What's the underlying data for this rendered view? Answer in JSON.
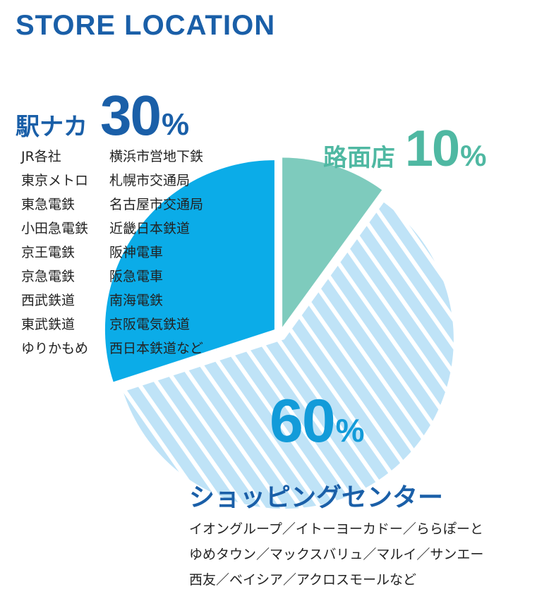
{
  "title": "STORE LOCATION",
  "colors": {
    "title": "#1a5fa8",
    "station": "#0bace8",
    "roadside": "#7ecbbd",
    "mall_fill": "#bfe3f7",
    "mall_stripe": "#ffffff",
    "station_label": "#1a5fa8",
    "roadside_label": "#4fb8a2",
    "mall_label": "#1a5fa8",
    "mall_pct": "#129bd9"
  },
  "chart_data": {
    "type": "pie",
    "slices": [
      {
        "label": "路面店",
        "value": 10,
        "percent_text": "10",
        "unit": "%"
      },
      {
        "label": "ショッピングセンター",
        "value": 60,
        "percent_text": "60",
        "unit": "%"
      },
      {
        "label": "駅ナカ",
        "value": 30,
        "percent_text": "30",
        "unit": "%"
      }
    ]
  },
  "station_list": {
    "col1": [
      "JR各社",
      "東京メトロ",
      "東急電鉄",
      "小田急電鉄",
      "京王電鉄",
      "京急電鉄",
      "西武鉄道",
      "東武鉄道",
      "ゆりかもめ"
    ],
    "col2": [
      "横浜市営地下鉄",
      "札幌市交通局",
      "名古屋市交通局",
      "近畿日本鉄道",
      "阪神電車",
      "阪急電車",
      "南海電鉄",
      "京阪電気鉄道",
      "西日本鉄道など"
    ]
  },
  "mall_list": [
    "イオングループ／イトーヨーカドー／ららぽーと",
    "ゆめタウン／マックスバリュ／マルイ／サンエー",
    "西友／ベイシア／アクロスモールなど"
  ]
}
